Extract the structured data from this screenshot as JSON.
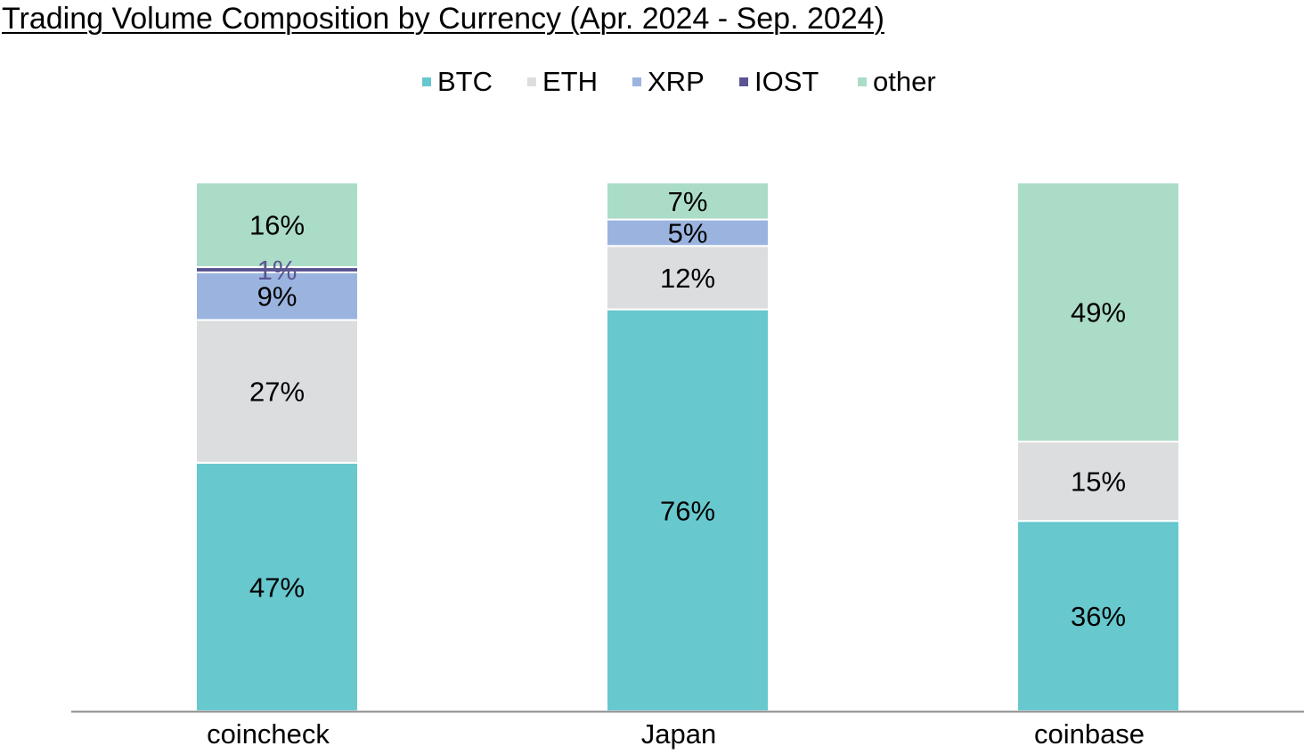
{
  "chart_data": {
    "type": "bar",
    "stacked": true,
    "title": "Trading Volume Composition by Currency (Apr. 2024 - Sep. 2024)",
    "categories": [
      "coincheck",
      "Japan",
      "coinbase"
    ],
    "series": [
      {
        "name": "BTC",
        "color": "#67c8ce",
        "values": [
          47,
          76,
          36
        ],
        "labels": [
          "47%",
          "76%",
          "36%"
        ],
        "label_color": "#000000"
      },
      {
        "name": "ETH",
        "color": "#dcdddf",
        "values": [
          27,
          12,
          15
        ],
        "labels": [
          "27%",
          "12%",
          "15%"
        ],
        "label_color": "#000000"
      },
      {
        "name": "XRP",
        "color": "#9bb4df",
        "values": [
          9,
          5,
          0
        ],
        "labels": [
          "9%",
          "5%",
          ""
        ],
        "label_color": "#000000"
      },
      {
        "name": "IOST",
        "color": "#5a5592",
        "values": [
          1,
          0,
          0
        ],
        "labels": [
          "1%",
          "",
          ""
        ],
        "label_color": "#5a5592"
      },
      {
        "name": "other",
        "color": "#abdcc7",
        "values": [
          16,
          7,
          49
        ],
        "labels": [
          "16%",
          "7%",
          "49%"
        ],
        "label_color": "#000000"
      }
    ],
    "ylim": [
      0,
      100
    ],
    "grid": false,
    "legend_position": "top-center",
    "axis_color": "#8c8c8c"
  }
}
